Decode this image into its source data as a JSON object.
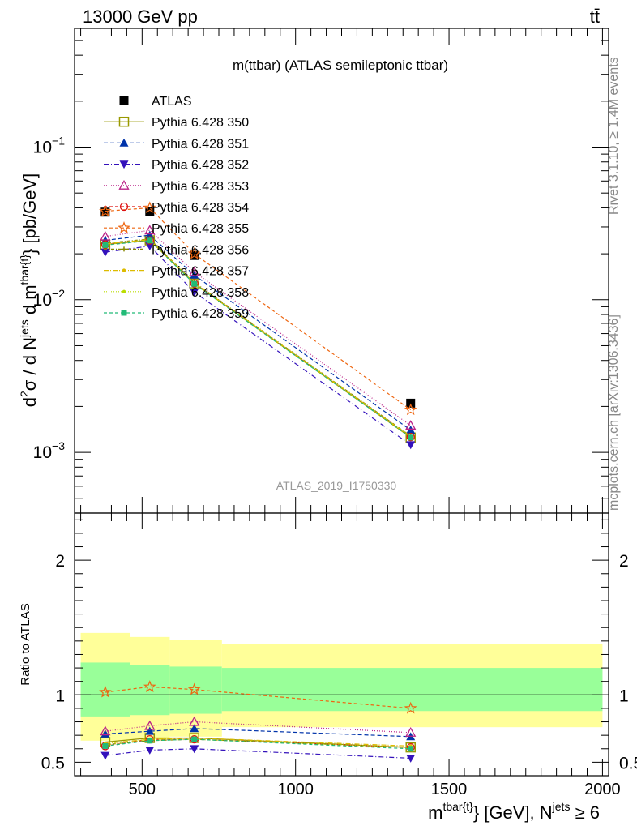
{
  "header": {
    "left": "13000 GeV pp",
    "right": "tt̄"
  },
  "side_labels": {
    "top": "Rivet 3.1.10, ≥ 1.4M events",
    "bottom": "mcplots.cern.ch [arXiv:1306.3436]"
  },
  "watermark": "ATLAS_2019_I1750330",
  "chart_data": [
    {
      "type": "line",
      "title": "m(ttbar) (ATLAS semileptonic ttbar)",
      "ylabel": "d²σ / d N^jets d m^tbar{t} [pb/GeV]",
      "ylabel_parts": {
        "d": "d",
        "sup2": "2",
        "sigma": "σ / d N",
        "jets": "jets",
        "dm": " d m",
        "tbar": "tbar{t}",
        "unit": "} [pb/GeV]"
      },
      "yscale": "log",
      "ylim": [
        0.0004,
        0.6
      ],
      "xlim": [
        280,
        2020
      ],
      "ytick_labels": [
        {
          "value": 0.1,
          "base": "10",
          "exp": "−1"
        },
        {
          "value": 0.01,
          "base": "10",
          "exp": "−2"
        },
        {
          "value": 0.001,
          "base": "10",
          "exp": "−3"
        }
      ],
      "x": [
        380,
        525,
        670,
        1375
      ],
      "series": [
        {
          "name": "ATLAS",
          "marker": "filled-square",
          "color": "#000000",
          "dash": "none",
          "values": [
            0.0375,
            0.038,
            0.0195,
            0.0021
          ]
        },
        {
          "name": "Pythia 6.428 350",
          "marker": "open-square",
          "color": "#999900",
          "dash": "none",
          "values": [
            0.023,
            0.0245,
            0.0128,
            0.00125
          ]
        },
        {
          "name": "Pythia 6.428 351",
          "marker": "filled-triangle-up",
          "color": "#0033aa",
          "dash": "5,3",
          "values": [
            0.0245,
            0.0265,
            0.0145,
            0.0014
          ]
        },
        {
          "name": "Pythia 6.428 352",
          "marker": "filled-triangle-down",
          "color": "#3311bb",
          "dash": "6,3,1,3",
          "values": [
            0.0205,
            0.0225,
            0.0112,
            0.00112
          ]
        },
        {
          "name": "Pythia 6.428 353",
          "marker": "open-triangle-up",
          "color": "#bb2288",
          "dash": "1,2",
          "values": [
            0.026,
            0.0285,
            0.0152,
            0.0015
          ]
        },
        {
          "name": "Pythia 6.428 354",
          "marker": "open-circle",
          "color": "#dd1111",
          "dash": "4,3",
          "values": [
            0.023,
            0.0245,
            0.0128,
            0.00126
          ]
        },
        {
          "name": "Pythia 6.428 355",
          "marker": "open-star",
          "color": "#ee6611",
          "dash": "4,3",
          "values": [
            0.038,
            0.04,
            0.02,
            0.0019
          ]
        },
        {
          "name": "Pythia 6.428 356",
          "marker": "small-cross",
          "color": "#888800",
          "dash": "4,2,1,2",
          "values": [
            0.0235,
            0.025,
            0.013,
            0.00128
          ]
        },
        {
          "name": "Pythia 6.428 357",
          "marker": "small-dot",
          "color": "#ddbb00",
          "dash": "6,2,1,2",
          "values": [
            0.0232,
            0.0248,
            0.0129,
            0.00127
          ]
        },
        {
          "name": "Pythia 6.428 358",
          "marker": "small-dot",
          "color": "#bbdd00",
          "dash": "1,2",
          "values": [
            0.0231,
            0.0247,
            0.0128,
            0.00126
          ]
        },
        {
          "name": "Pythia 6.428 359",
          "marker": "filled-square-small",
          "color": "#22bb77",
          "dash": "4,3",
          "values": [
            0.0228,
            0.0244,
            0.0127,
            0.00125
          ]
        }
      ]
    },
    {
      "type": "line",
      "ylabel": "Ratio to ATLAS",
      "ylim": [
        0.4,
        2.35
      ],
      "xlim": [
        280,
        2020
      ],
      "yticks": [
        0.5,
        1,
        2
      ],
      "ytick_labels": [
        "0.5",
        "1",
        "2"
      ],
      "xticks": [
        500,
        1000,
        1500,
        2000
      ],
      "xtick_labels": [
        "500",
        "1000",
        "1500",
        "2000"
      ],
      "xlabel_parts": {
        "m": "m",
        "tbar": "tbar{t}",
        "mid": "} [GeV], N",
        "jets": "jets",
        "end": " ≥ 6"
      },
      "bands": {
        "bins": [
          [
            300,
            460
          ],
          [
            460,
            590
          ],
          [
            590,
            760
          ],
          [
            760,
            2000
          ]
        ],
        "yellow": [
          [
            0.66,
            1.46
          ],
          [
            0.67,
            1.43
          ],
          [
            0.69,
            1.41
          ],
          [
            0.76,
            1.38
          ]
        ],
        "green": [
          [
            0.84,
            1.24
          ],
          [
            0.85,
            1.22
          ],
          [
            0.86,
            1.21
          ],
          [
            0.88,
            1.2
          ]
        ]
      },
      "x": [
        380,
        525,
        670,
        1375
      ],
      "series": [
        {
          "name": "Pythia 6.428 350",
          "values": [
            0.65,
            0.68,
            0.68,
            0.61
          ]
        },
        {
          "name": "Pythia 6.428 351",
          "values": [
            0.71,
            0.73,
            0.75,
            0.69
          ]
        },
        {
          "name": "Pythia 6.428 352",
          "values": [
            0.55,
            0.59,
            0.6,
            0.53
          ]
        },
        {
          "name": "Pythia 6.428 353",
          "values": [
            0.73,
            0.77,
            0.8,
            0.72
          ]
        },
        {
          "name": "Pythia 6.428 354",
          "values": [
            0.62,
            0.67,
            0.67,
            0.61
          ]
        },
        {
          "name": "Pythia 6.428 355",
          "values": [
            1.02,
            1.06,
            1.04,
            0.9
          ]
        },
        {
          "name": "Pythia 6.428 356",
          "values": [
            0.63,
            0.66,
            0.67,
            0.61
          ]
        },
        {
          "name": "Pythia 6.428 357",
          "values": [
            0.64,
            0.67,
            0.68,
            0.62
          ]
        },
        {
          "name": "Pythia 6.428 358",
          "values": [
            0.63,
            0.67,
            0.67,
            0.61
          ]
        },
        {
          "name": "Pythia 6.428 359",
          "values": [
            0.62,
            0.66,
            0.67,
            0.6
          ]
        }
      ]
    }
  ]
}
